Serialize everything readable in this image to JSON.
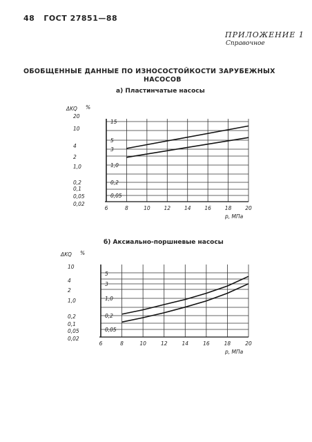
{
  "header": {
    "page": "48",
    "doc": "ГОСТ 27851—88",
    "appendix": "ПРИЛОЖЕНИЕ 1",
    "reference": "Справочное"
  },
  "title": {
    "line1": "ОБОБЩЕННЫЕ ДАННЫЕ ПО ИЗНОСОСТОЙКОСТИ ЗАРУБЕЖНЫХ",
    "line2": "НАСОСОВ"
  },
  "chart_data": [
    {
      "type": "line",
      "title": "а) Пластинчатые насосы",
      "ylabel": "ΔK_Q, %",
      "xlabel": "p, МПа",
      "x_ticks": [
        6,
        8,
        10,
        12,
        14,
        16,
        18,
        20
      ],
      "y_tick_labels_left": [
        "20",
        "10",
        "4",
        "2",
        "1,0",
        "0,2",
        "0,1",
        "0,05",
        "0,02"
      ],
      "y_tick_labels_right": [
        "15",
        "5",
        "3",
        "1,0",
        "0,2",
        "0,05"
      ],
      "xlim": [
        6,
        20
      ],
      "y_scale": "log",
      "grid": true,
      "series": [
        {
          "x": [
            8,
            20
          ],
          "y": [
            1.8,
            12
          ]
        },
        {
          "x": [
            8,
            20
          ],
          "y": [
            0.85,
            4.5
          ]
        }
      ]
    },
    {
      "type": "line",
      "title": "б) Аксиально-поршневые насосы",
      "ylabel": "ΔK_Q, %",
      "xlabel": "p, МПа",
      "x_ticks": [
        6,
        8,
        10,
        12,
        14,
        16,
        18,
        20
      ],
      "y_tick_labels_left": [
        "10",
        "4",
        "2",
        "1,0",
        "0,2",
        "0,1",
        "0,05",
        "0,02"
      ],
      "y_tick_labels_right": [
        "5",
        "3",
        "1,0",
        "0,2",
        "0,05"
      ],
      "xlim": [
        6,
        20
      ],
      "y_scale": "log",
      "grid": true,
      "series": [
        {
          "x": [
            8,
            10,
            12,
            14,
            16,
            18,
            20
          ],
          "y": [
            0.15,
            0.22,
            0.35,
            0.55,
            0.95,
            1.8,
            4.2
          ]
        },
        {
          "x": [
            8,
            10,
            12,
            14,
            16,
            18,
            20
          ],
          "y": [
            0.075,
            0.11,
            0.17,
            0.28,
            0.48,
            0.95,
            2.2
          ]
        }
      ]
    }
  ]
}
